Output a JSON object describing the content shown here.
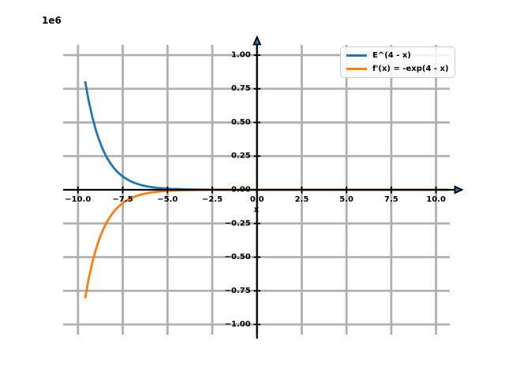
{
  "figure": {
    "offset_label": "1e6",
    "xlabel": "x",
    "background": "#ffffff"
  },
  "legend": {
    "position": "upper right",
    "items": [
      {
        "label": "E^(4 - x)",
        "color": "#1f77b4"
      },
      {
        "label": "f'(x) = -exp(4 - x)",
        "color": "#ff7f0e"
      }
    ]
  },
  "chart_data": {
    "type": "line",
    "title": "",
    "xlabel": "x",
    "ylabel": "",
    "y_offset_multiplier": "1e6",
    "xlim": [
      -10.83,
      10.9
    ],
    "ylim": [
      -1.076,
      1.076
    ],
    "grid": true,
    "grid_color": "#b0b0b0",
    "spine_color": "#000000",
    "legend_position": "upper right",
    "x_ticks": [
      {
        "v": -10,
        "label": "−10.0"
      },
      {
        "v": -7.5,
        "label": "−7.5"
      },
      {
        "v": -5,
        "label": "−5.0"
      },
      {
        "v": -2.5,
        "label": "−2.5"
      },
      {
        "v": 0,
        "label": "0.0"
      },
      {
        "v": 2.5,
        "label": "2.5"
      },
      {
        "v": 5,
        "label": "5.0"
      },
      {
        "v": 7.5,
        "label": "7.5"
      },
      {
        "v": 10,
        "label": "10.0"
      }
    ],
    "y_ticks": [
      {
        "v": -1,
        "label": "−1.00"
      },
      {
        "v": -0.75,
        "label": "−0.75"
      },
      {
        "v": -0.5,
        "label": "−0.50"
      },
      {
        "v": -0.25,
        "label": "−0.25"
      },
      {
        "v": 0,
        "label": "0.00"
      },
      {
        "v": 0.25,
        "label": "0.25"
      },
      {
        "v": 0.5,
        "label": "0.50"
      },
      {
        "v": 0.75,
        "label": "0.75"
      },
      {
        "v": 1,
        "label": "1.00"
      }
    ],
    "x_shared": [
      -9.6,
      -9.4,
      -9.2,
      -9,
      -8.8,
      -8.6,
      -8.4,
      -8.2,
      -8,
      -7.8,
      -7.6,
      -7.4,
      -7.2,
      -7,
      -6.8,
      -6.6,
      -6.4,
      -6.2,
      -6,
      -5.6,
      -5.2,
      -4.8,
      -4.4,
      -4,
      -3.5,
      -3,
      -2.5,
      -2,
      -1,
      0,
      2.5,
      5,
      7.5,
      10,
      10.7
    ],
    "series": [
      {
        "name": "E^(4 - x)",
        "color": "#1f77b4",
        "y": [
          0.8061,
          0.66,
          0.5404,
          0.4424,
          0.3622,
          0.2966,
          0.2428,
          0.1988,
          0.1628,
          0.1333,
          0.1091,
          0.0893,
          0.0731,
          0.0599,
          0.049,
          0.0401,
          0.0329,
          0.0269,
          0.022,
          0.0148,
          0.0099,
          0.0066,
          0.0044,
          0.003,
          0.0018,
          0.0011,
          0.0007,
          0.0004,
          0.0001,
          0.0001,
          0,
          0,
          0,
          0,
          0
        ]
      },
      {
        "name": "f'(x) = -exp(4 - x)",
        "color": "#ff7f0e",
        "y": [
          -0.8061,
          -0.66,
          -0.5404,
          -0.4424,
          -0.3622,
          -0.2966,
          -0.2428,
          -0.1988,
          -0.1628,
          -0.1333,
          -0.1091,
          -0.0893,
          -0.0731,
          -0.0599,
          -0.049,
          -0.0401,
          -0.0329,
          -0.0269,
          -0.022,
          -0.0148,
          -0.0099,
          -0.0066,
          -0.0044,
          -0.003,
          -0.0018,
          -0.0011,
          -0.0007,
          -0.0004,
          -0.0001,
          -0.0001,
          0,
          0,
          0,
          0,
          0
        ]
      }
    ]
  }
}
